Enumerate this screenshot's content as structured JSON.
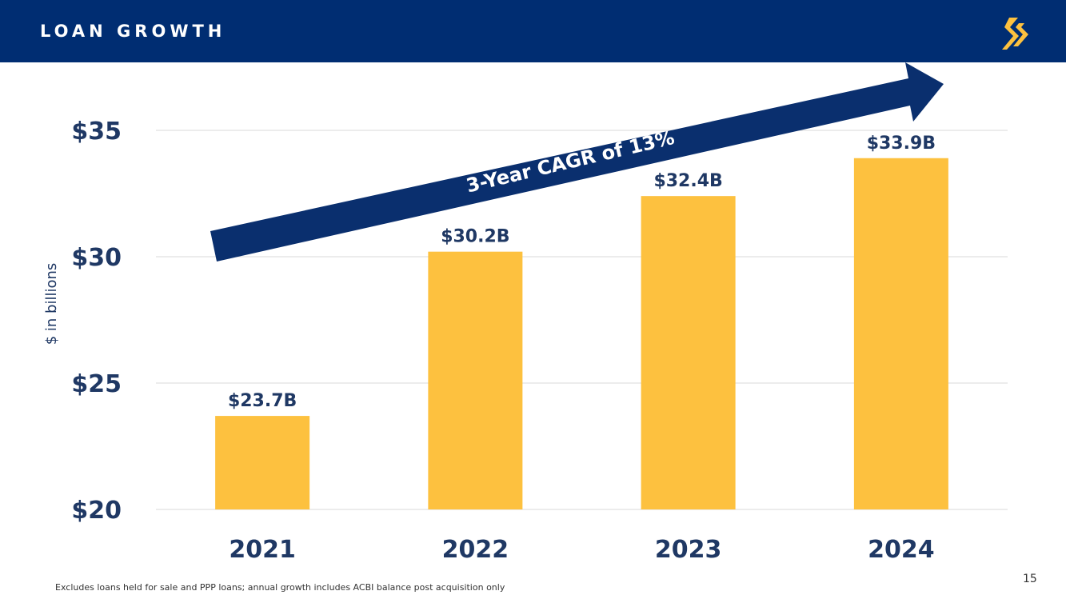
{
  "header": {
    "title": "LOAN GROWTH"
  },
  "colors": {
    "header_bg": "#002d72",
    "bar": "#fdc13f",
    "text_navy": "#1f3864",
    "arrow": "#0a2f6e",
    "grid": "#d9d9d9"
  },
  "icons": {
    "logo": "bank-logo-icon"
  },
  "chart_data": {
    "type": "bar",
    "categories": [
      "2021",
      "2022",
      "2023",
      "2024"
    ],
    "values": [
      23.7,
      30.2,
      32.4,
      33.9
    ],
    "data_labels": [
      "$23.7B",
      "$30.2B",
      "$32.4B",
      "$33.9B"
    ],
    "ylabel": "$ in billions",
    "ylim": [
      20,
      35
    ],
    "yticks": [
      20,
      25,
      30,
      35
    ],
    "ytick_labels": [
      "$20",
      "$25",
      "$30",
      "$35"
    ],
    "grid": true,
    "annotation": "3-Year CAGR of 13%"
  },
  "footer": {
    "note": "Excludes loans held for sale and PPP loans; annual growth includes ACBI balance post acquisition only",
    "page_number": "15"
  }
}
